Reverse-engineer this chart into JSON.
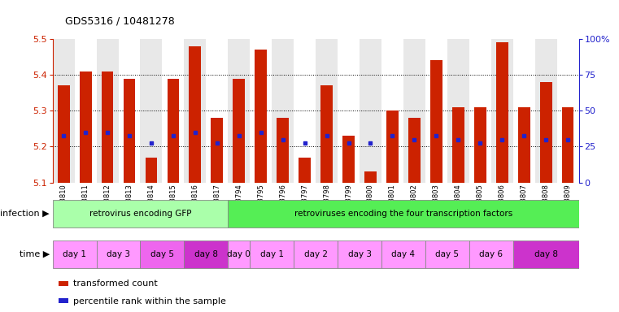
{
  "title": "GDS5316 / 10481278",
  "samples": [
    "GSM943810",
    "GSM943811",
    "GSM943812",
    "GSM943813",
    "GSM943814",
    "GSM943815",
    "GSM943816",
    "GSM943817",
    "GSM943794",
    "GSM943795",
    "GSM943796",
    "GSM943797",
    "GSM943798",
    "GSM943799",
    "GSM943800",
    "GSM943801",
    "GSM943802",
    "GSM943803",
    "GSM943804",
    "GSM943805",
    "GSM943806",
    "GSM943807",
    "GSM943808",
    "GSM943809"
  ],
  "bar_values": [
    5.37,
    5.41,
    5.41,
    5.39,
    5.17,
    5.39,
    5.48,
    5.28,
    5.39,
    5.47,
    5.28,
    5.17,
    5.37,
    5.23,
    5.13,
    5.3,
    5.28,
    5.44,
    5.31,
    5.31,
    5.49,
    5.31,
    5.38,
    5.31
  ],
  "percentile_values": [
    5.23,
    5.24,
    5.24,
    5.23,
    5.21,
    5.23,
    5.24,
    5.21,
    5.23,
    5.24,
    5.22,
    5.21,
    5.23,
    5.21,
    5.21,
    5.23,
    5.22,
    5.23,
    5.22,
    5.21,
    5.22,
    5.23,
    5.22,
    5.22
  ],
  "y_min": 5.1,
  "y_max": 5.5,
  "y_ticks_left": [
    5.1,
    5.2,
    5.3,
    5.4,
    5.5
  ],
  "y_ticks_right": [
    0,
    25,
    50,
    75,
    100
  ],
  "bar_color": "#cc2200",
  "percentile_color": "#2222cc",
  "infection_groups": [
    {
      "label": "retrovirus encoding GFP",
      "start": 0,
      "end": 8,
      "color": "#aaffaa"
    },
    {
      "label": "retroviruses encoding the four transcription factors",
      "start": 8,
      "end": 24,
      "color": "#55ee55"
    }
  ],
  "time_groups": [
    {
      "label": "day 1",
      "start": 0,
      "end": 2,
      "color": "#ff99ff"
    },
    {
      "label": "day 3",
      "start": 2,
      "end": 4,
      "color": "#ff99ff"
    },
    {
      "label": "day 5",
      "start": 4,
      "end": 6,
      "color": "#ee66ee"
    },
    {
      "label": "day 8",
      "start": 6,
      "end": 8,
      "color": "#cc33cc"
    },
    {
      "label": "day 0",
      "start": 8,
      "end": 9,
      "color": "#ff99ff"
    },
    {
      "label": "day 1",
      "start": 9,
      "end": 11,
      "color": "#ff99ff"
    },
    {
      "label": "day 2",
      "start": 11,
      "end": 13,
      "color": "#ff99ff"
    },
    {
      "label": "day 3",
      "start": 13,
      "end": 15,
      "color": "#ff99ff"
    },
    {
      "label": "day 4",
      "start": 15,
      "end": 17,
      "color": "#ff99ff"
    },
    {
      "label": "day 5",
      "start": 17,
      "end": 19,
      "color": "#ff99ff"
    },
    {
      "label": "day 6",
      "start": 19,
      "end": 21,
      "color": "#ff99ff"
    },
    {
      "label": "day 8",
      "start": 21,
      "end": 24,
      "color": "#cc33cc"
    }
  ],
  "gridlines": [
    5.2,
    5.3,
    5.4
  ],
  "col_bg_even": "#e8e8e8",
  "col_bg_odd": "#ffffff"
}
